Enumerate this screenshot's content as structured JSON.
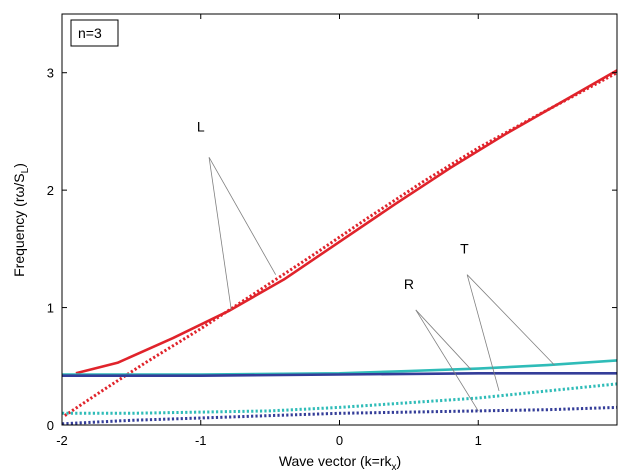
{
  "chart_data": {
    "type": "line",
    "xlabel_main": "Wave vector (k=rk",
    "xlabel_sub": "x",
    "xlabel_end": ")",
    "ylabel_main": "Frequency (r",
    "ylabel_omega": "ω",
    "ylabel_mid": "/S",
    "ylabel_sub": "L",
    "ylabel_end": ")",
    "xlim": [
      -2,
      2
    ],
    "ylim": [
      0,
      3.5
    ],
    "x_ticks": [
      -2,
      -1,
      0,
      1
    ],
    "x_tick_labels": [
      "-2",
      "-1",
      "0",
      "1"
    ],
    "y_ticks": [
      0,
      1,
      2,
      3
    ],
    "y_tick_labels": [
      "0",
      "1",
      "2",
      "3"
    ],
    "grid": false,
    "box_label": "n=3",
    "series": [
      {
        "id": "L-solid",
        "color": "#e0232b",
        "dash": "solid",
        "x": [
          -1.9,
          -1.6,
          -1.2,
          -0.8,
          -0.4,
          0.0,
          0.4,
          0.8,
          1.2,
          1.6,
          2.0
        ],
        "y": [
          0.44,
          0.53,
          0.74,
          0.97,
          1.24,
          1.56,
          1.88,
          2.19,
          2.48,
          2.75,
          3.02
        ]
      },
      {
        "id": "L-dotted",
        "color": "#e0232b",
        "dash": "dotted",
        "x": [
          -1.98,
          -1.7,
          -1.4,
          -1.0,
          -0.6,
          -0.2,
          0.2,
          0.6,
          1.0,
          1.4,
          1.7,
          2.0
        ],
        "y": [
          0.08,
          0.3,
          0.53,
          0.82,
          1.13,
          1.44,
          1.76,
          2.07,
          2.36,
          2.62,
          2.81,
          3.0
        ]
      },
      {
        "id": "T-solid",
        "color": "#2fbcb8",
        "dash": "solid",
        "x": [
          -2.0,
          -1.0,
          0.0,
          0.5,
          1.0,
          1.5,
          2.0
        ],
        "y": [
          0.43,
          0.43,
          0.44,
          0.46,
          0.48,
          0.51,
          0.55
        ]
      },
      {
        "id": "T-dotted",
        "color": "#2fbcb8",
        "dash": "dotted",
        "x": [
          -2.0,
          -1.5,
          -1.0,
          -0.5,
          0.0,
          0.5,
          1.0,
          1.5,
          2.0
        ],
        "y": [
          0.1,
          0.1,
          0.11,
          0.12,
          0.15,
          0.19,
          0.23,
          0.29,
          0.35
        ]
      },
      {
        "id": "R-solid",
        "color": "#343d99",
        "dash": "solid",
        "x": [
          -2.0,
          -1.0,
          0.0,
          1.0,
          2.0
        ],
        "y": [
          0.42,
          0.42,
          0.43,
          0.44,
          0.44
        ]
      },
      {
        "id": "R-dotted",
        "color": "#343d99",
        "dash": "dotted",
        "x": [
          -2.0,
          -1.5,
          -1.0,
          -0.5,
          0.0,
          0.5,
          1.0,
          1.5,
          2.0
        ],
        "y": [
          0.01,
          0.04,
          0.06,
          0.08,
          0.1,
          0.11,
          0.12,
          0.13,
          0.15
        ]
      }
    ],
    "annotations": [
      {
        "label": "L",
        "text_at": [
          -1.0,
          2.5
        ],
        "line_from": [
          -0.94,
          2.28
        ],
        "targets": [
          [
            -0.46,
            1.28
          ],
          [
            -0.78,
            0.98
          ]
        ]
      },
      {
        "label": "T",
        "text_at": [
          0.9,
          1.46
        ],
        "line_from": [
          0.92,
          1.28
        ],
        "targets": [
          [
            1.55,
            0.51
          ],
          [
            1.15,
            0.29
          ]
        ]
      },
      {
        "label": "R",
        "text_at": [
          0.5,
          1.16
        ],
        "line_from": [
          0.55,
          0.98
        ],
        "targets": [
          [
            0.95,
            0.47
          ],
          [
            1.0,
            0.12
          ]
        ]
      }
    ]
  }
}
